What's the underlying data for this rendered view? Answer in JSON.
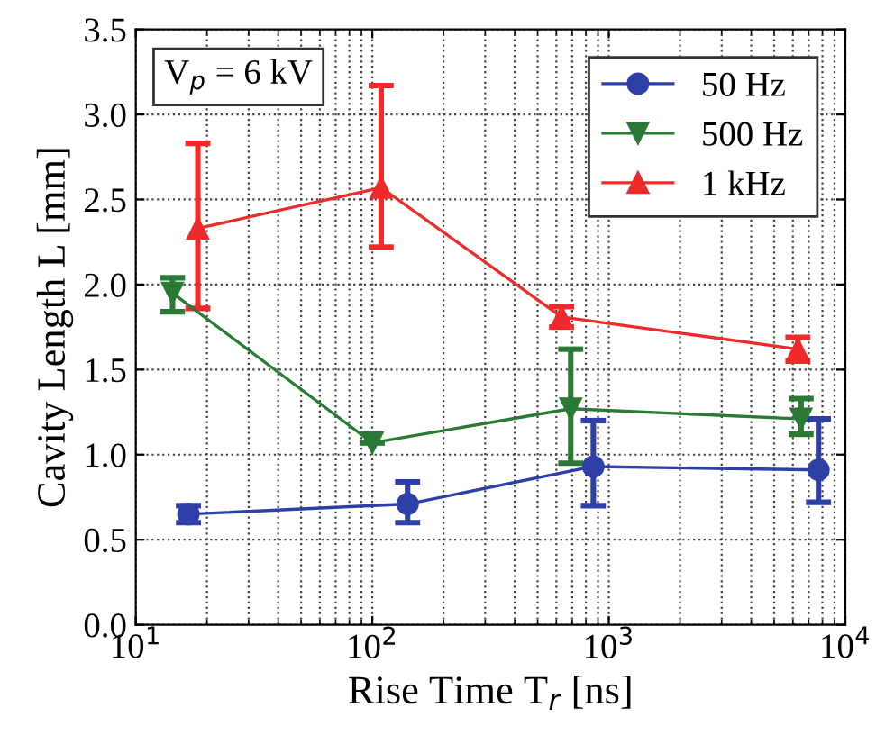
{
  "chart_data": {
    "type": "line",
    "xlabel": "Rise Time T$_{r}$ [ns]",
    "ylabel": "Cavity Length L [mm]",
    "annotations": [
      "V$_{p}$ = 6 kV"
    ],
    "log": "x",
    "xlim": [
      10,
      10000
    ],
    "xticks": [
      {
        "value": 10,
        "label": "10$^{1}$"
      },
      {
        "value": 100,
        "label": "10$^{2}$"
      },
      {
        "value": 1000,
        "label": "10$^{3}$"
      },
      {
        "value": 10000,
        "label": "10$^{4}$"
      }
    ],
    "ylim": [
      0,
      3.5
    ],
    "yticks": [
      {
        "value": 0,
        "label": "0.0"
      },
      {
        "value": 0.5,
        "label": "0.5"
      },
      {
        "value": 1,
        "label": "1.0"
      },
      {
        "value": 1.5,
        "label": "1.5"
      },
      {
        "value": 2,
        "label": "2.0"
      },
      {
        "value": 2.5,
        "label": "2.5"
      },
      {
        "value": 3,
        "label": "3.0"
      },
      {
        "value": 3.5,
        "label": "3.5"
      }
    ],
    "grid": true,
    "legend": "top right",
    "line_style": "solid",
    "series": [
      {
        "name": "50 Hz",
        "color": "#2e3fa8",
        "marker": "circle",
        "x": [
          16.7,
          141,
          860,
          7700
        ],
        "values": [
          0.65,
          0.71,
          0.93,
          0.91
        ],
        "errors": [
          [
            0.6,
            0.7
          ],
          [
            0.6,
            0.84
          ],
          [
            0.7,
            1.2
          ],
          [
            0.72,
            1.21
          ]
        ]
      },
      {
        "name": "500 Hz",
        "color": "#2a7a35",
        "marker": "triangle_down",
        "x": [
          14.3,
          100,
          690,
          6500
        ],
        "values": [
          1.95,
          1.07,
          1.27,
          1.21
        ],
        "errors": [
          [
            1.84,
            2.04
          ],
          null,
          [
            0.95,
            1.62
          ],
          [
            1.12,
            1.33
          ]
        ]
      },
      {
        "name": "1 kHz",
        "color": "#ee2a2a",
        "marker": "triangle",
        "x": [
          18.3,
          109,
          631,
          6300
        ],
        "values": [
          2.33,
          2.57,
          1.81,
          1.62
        ],
        "errors": [
          [
            1.86,
            2.83
          ],
          [
            2.22,
            3.17
          ],
          [
            1.75,
            1.87
          ],
          [
            1.55,
            1.69
          ]
        ]
      }
    ]
  }
}
